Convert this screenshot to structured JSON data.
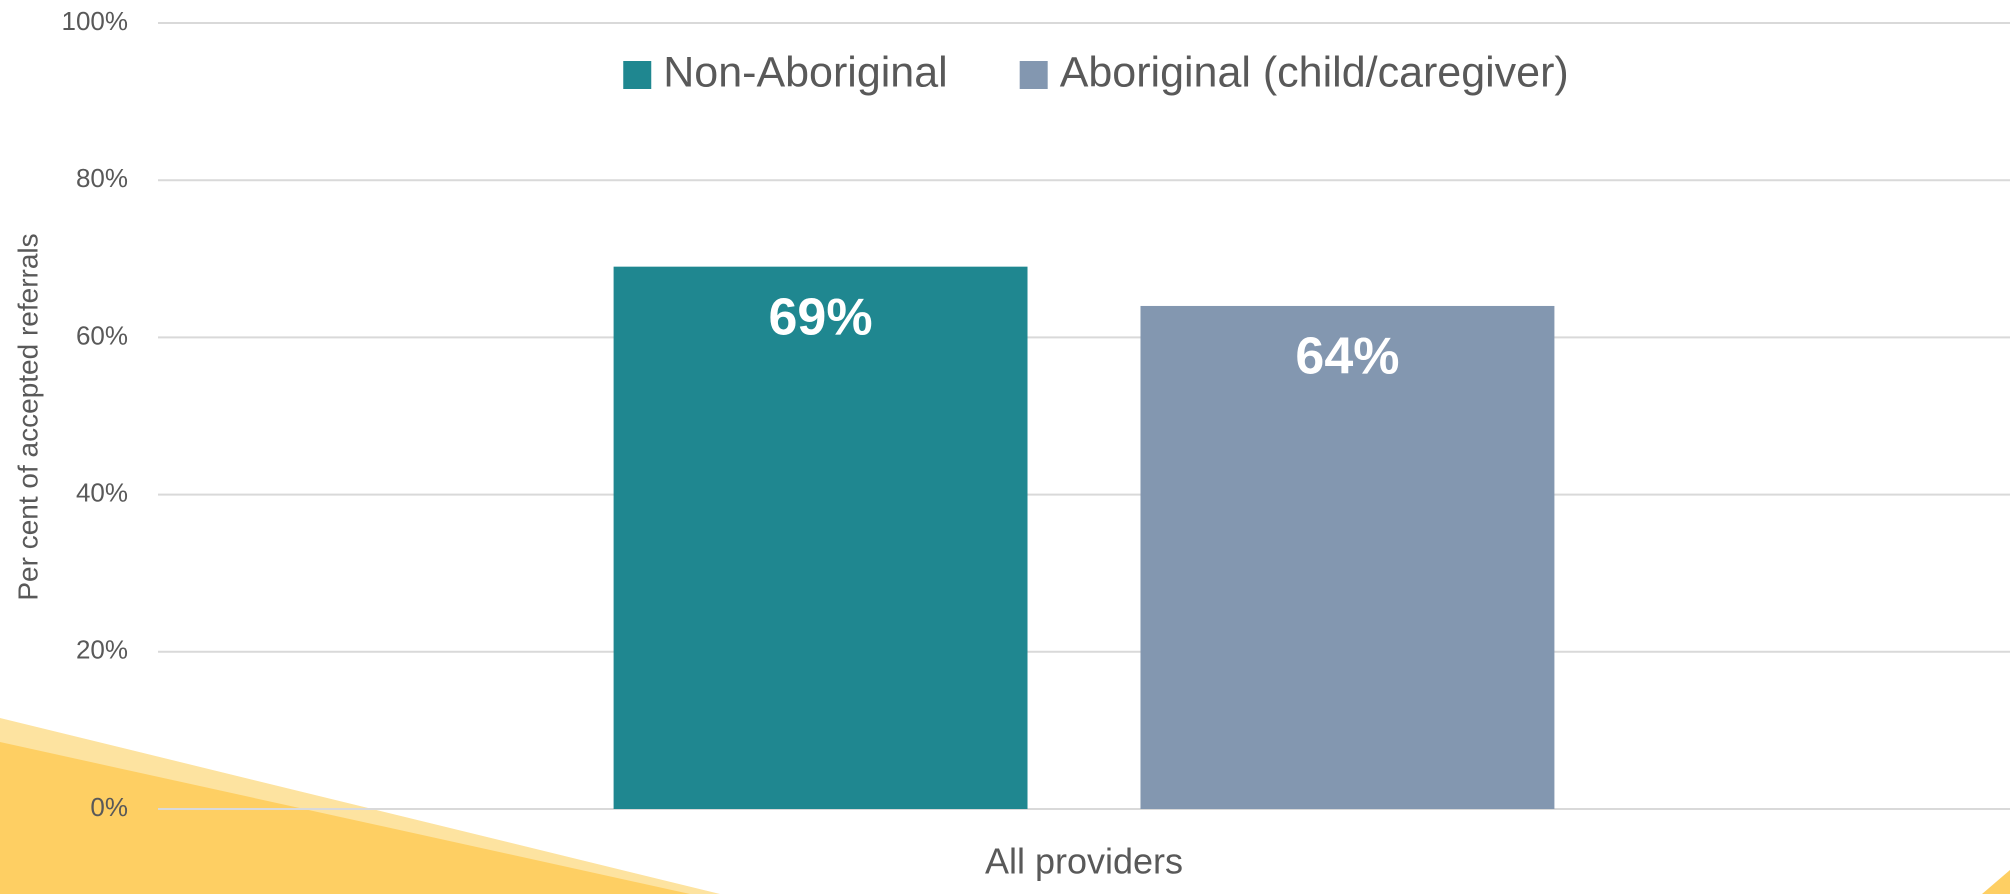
{
  "chart_data": {
    "type": "bar",
    "y_label": "Per cent of accepted referrals",
    "categories": [
      "All providers"
    ],
    "series": [
      {
        "name": "Non-Aboriginal",
        "color": "#1f8790",
        "values": [
          69
        ],
        "value_labels": [
          "69%"
        ]
      },
      {
        "name": "Aboriginal (child/caregiver)",
        "color": "#8397b0",
        "values": [
          64
        ],
        "value_labels": [
          "64%"
        ]
      }
    ],
    "ylim": [
      0,
      100
    ],
    "yticks": [
      {
        "value": 0,
        "label": "0%"
      },
      {
        "value": 20,
        "label": "20%"
      },
      {
        "value": 40,
        "label": "40%"
      },
      {
        "value": 60,
        "label": "60%"
      },
      {
        "value": 80,
        "label": "80%"
      },
      {
        "value": 100,
        "label": "100%"
      }
    ],
    "grid": true,
    "legend": "top"
  }
}
